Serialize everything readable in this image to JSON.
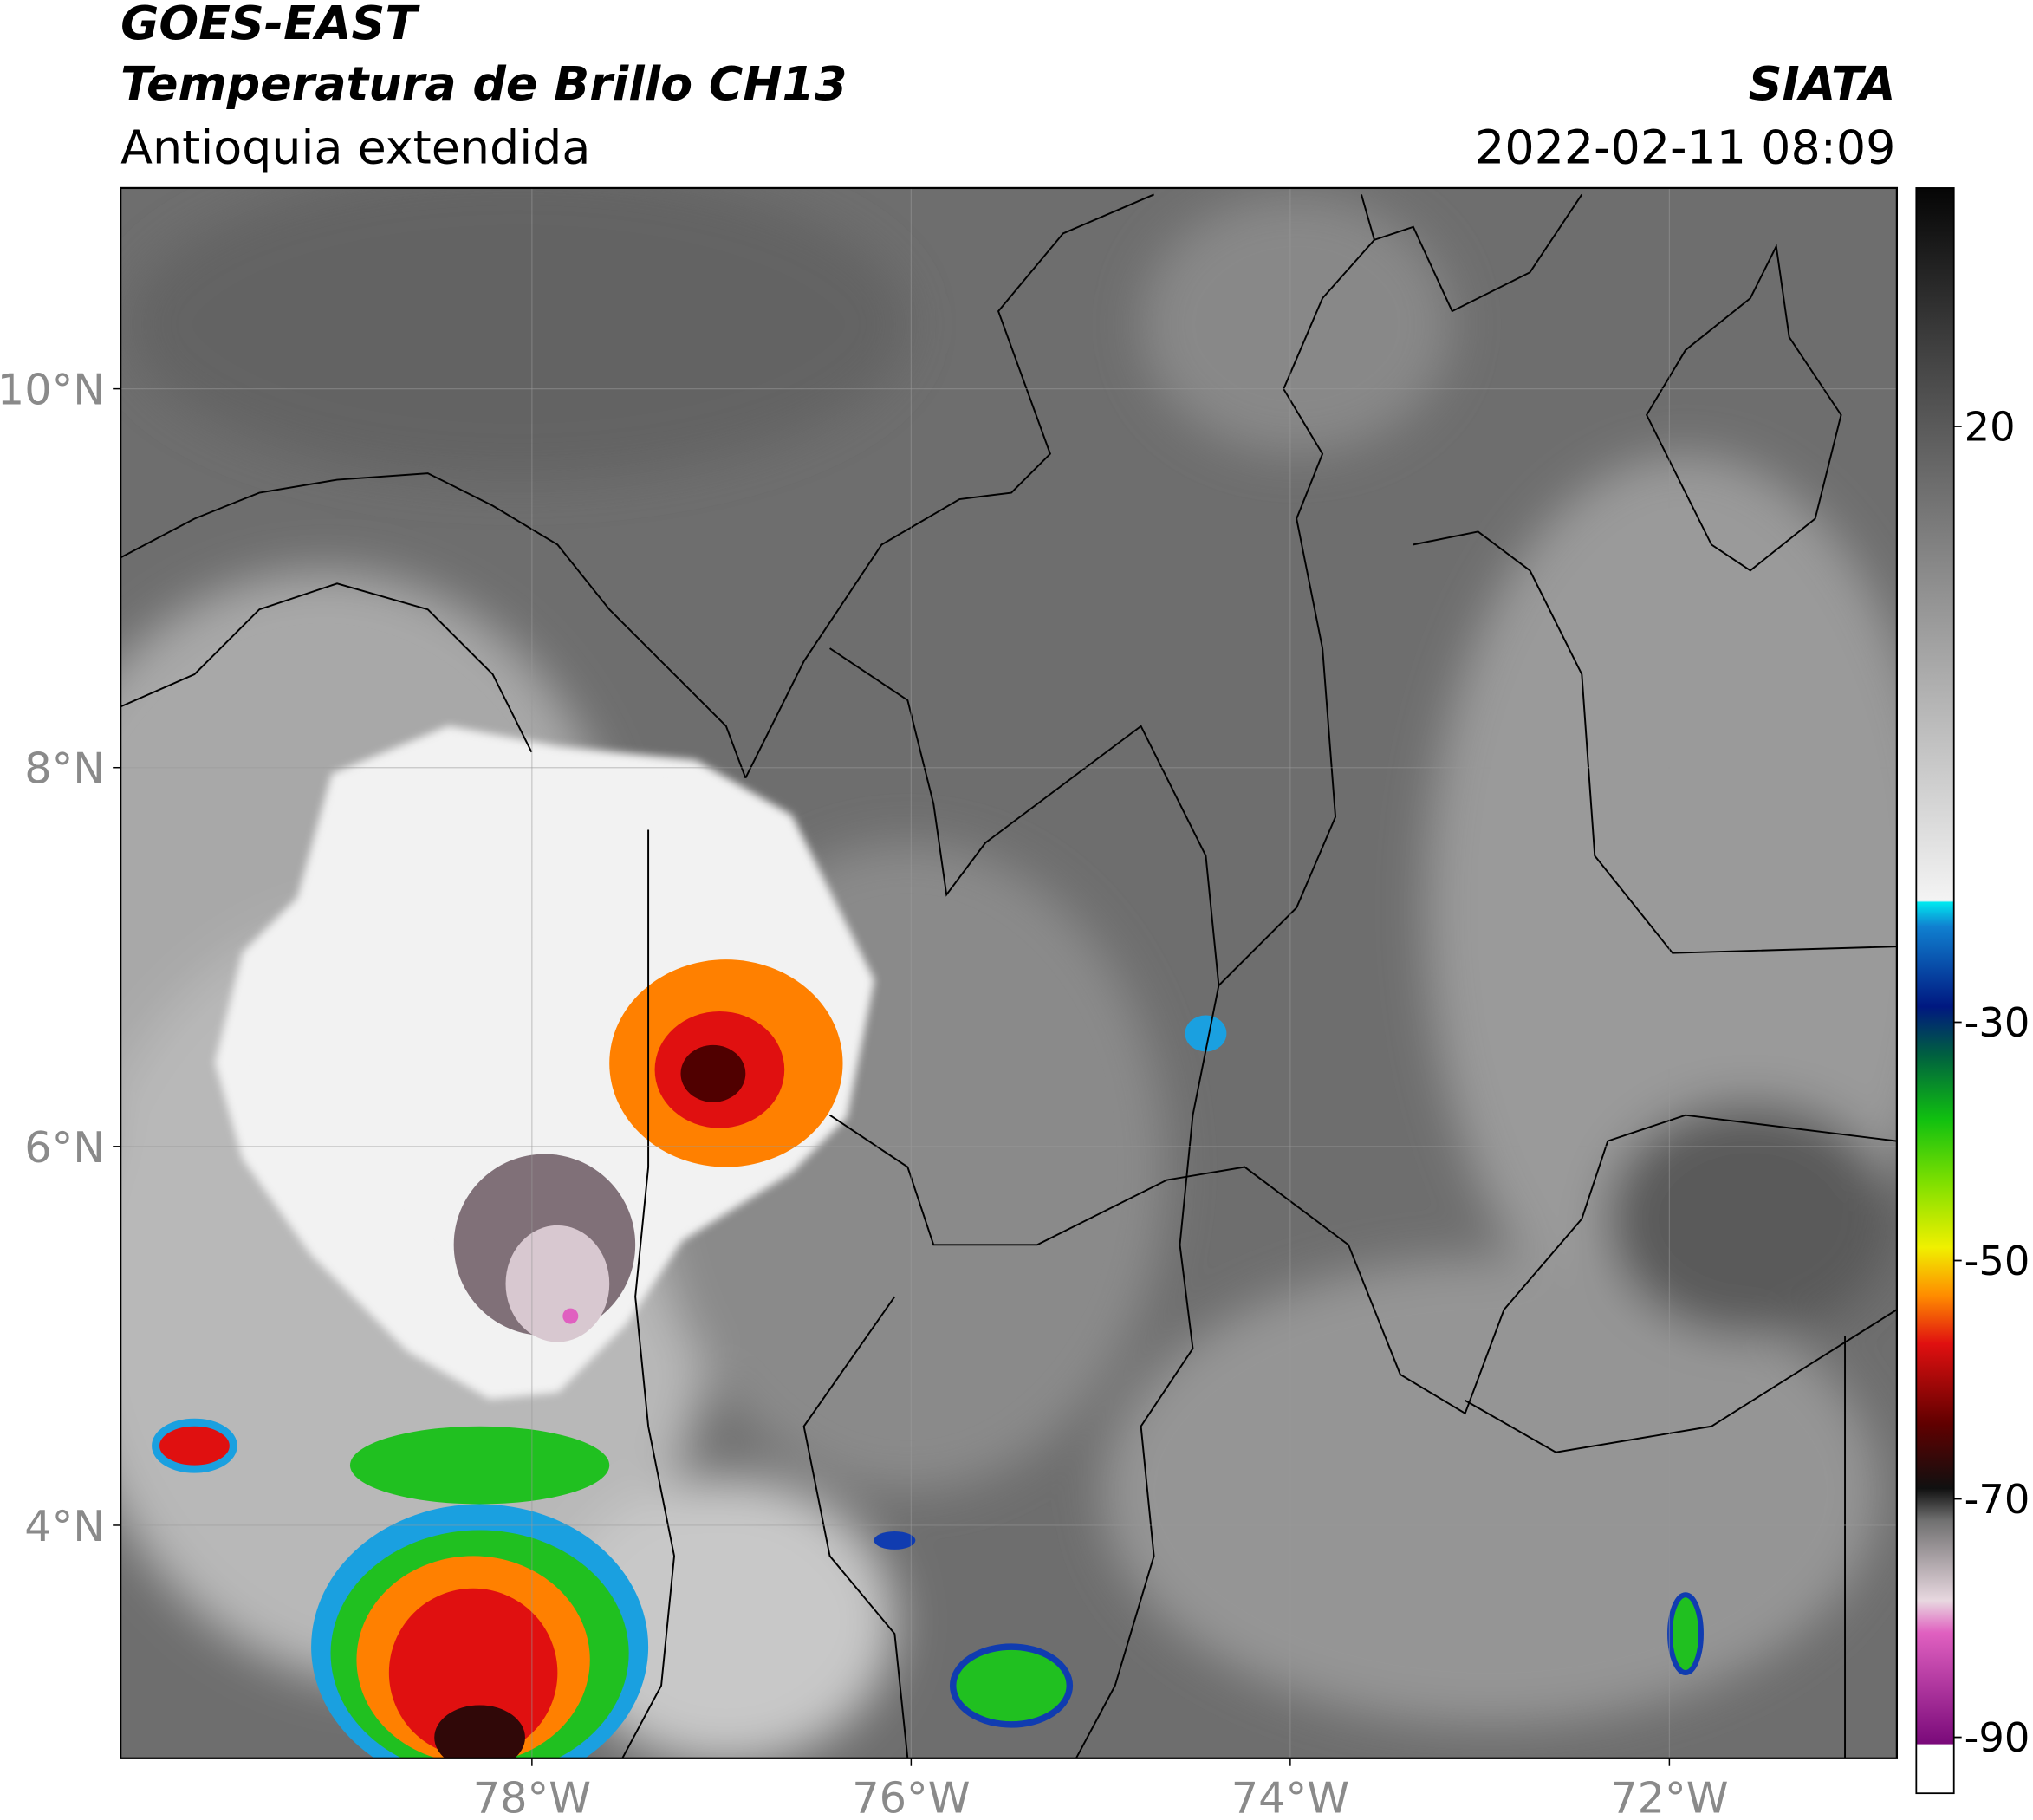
{
  "header": {
    "title": "GOES-EAST",
    "subtitle": "Temperatura de Brillo CH13",
    "region": "Antioquia extendida",
    "source": "SIATA",
    "datetime": "2022-02-11 08:09"
  },
  "map": {
    "xlim": [
      -80.17,
      -70.8
    ],
    "ylim": [
      2.77,
      11.06
    ],
    "lon_ticks": [
      {
        "value": -78,
        "label": "78°W"
      },
      {
        "value": -76,
        "label": "76°W"
      },
      {
        "value": -74,
        "label": "74°W"
      },
      {
        "value": -72,
        "label": "72°W"
      }
    ],
    "lat_ticks": [
      {
        "value": 10,
        "label": "10°N"
      },
      {
        "value": 8,
        "label": "8°N"
      },
      {
        "value": 6,
        "label": "6°N"
      },
      {
        "value": 4,
        "label": "4°N"
      }
    ],
    "grid": true
  },
  "colorbar": {
    "lim": [
      -94.7,
      40
    ],
    "ticks": [
      20,
      -30,
      -50,
      -70,
      -90
    ]
  }
}
